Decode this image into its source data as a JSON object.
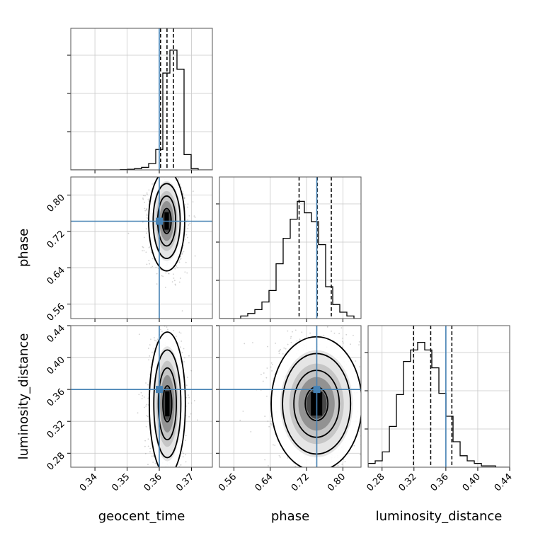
{
  "chart_data": {
    "type": "corner",
    "parameters": [
      "geocent_time",
      "phase",
      "luminosity_distance"
    ],
    "axis_labels": {
      "geocent_time": "geocent_time",
      "phase": "phase",
      "luminosity_distance": "luminosity_distance"
    },
    "ranges": {
      "geocent_time": [
        0.3325,
        0.3765
      ],
      "phase": [
        0.528,
        0.84
      ],
      "luminosity_distance": [
        0.2625,
        0.44
      ]
    },
    "ticks": {
      "geocent_time": [
        0.34,
        0.35,
        0.36,
        0.37
      ],
      "phase": [
        0.56,
        0.64,
        0.72,
        0.8
      ],
      "luminosity_distance": [
        0.28,
        0.32,
        0.36,
        0.4,
        0.44
      ]
    },
    "tick_labels": {
      "geocent_time": [
        "0.34",
        "0.35",
        "0.36",
        "0.37"
      ],
      "phase": [
        "0.56",
        "0.64",
        "0.72",
        "0.80"
      ],
      "luminosity_distance": [
        "0.28",
        "0.32",
        "0.36",
        "0.40",
        "0.44"
      ]
    },
    "truths": {
      "geocent_time": 0.36,
      "phase": 0.7425,
      "luminosity_distance": 0.36
    },
    "quantiles": {
      "geocent_time": [
        0.3604,
        0.3624,
        0.3644
      ],
      "phase": [
        0.7035,
        0.7435,
        0.7745
      ],
      "luminosity_distance": [
        0.3195,
        0.341,
        0.3675
      ]
    },
    "histograms": {
      "geocent_time": {
        "edges_range": [
          0.3325,
          0.3765
        ],
        "counts": [
          0,
          0,
          0,
          0,
          0,
          0,
          0,
          0.002,
          0.005,
          0.01,
          0.02,
          0.05,
          0.16,
          0.76,
          0.94,
          0.79,
          0.12,
          0.01,
          0,
          0
        ]
      },
      "phase": {
        "edges_range": [
          0.528,
          0.84
        ],
        "counts": [
          0,
          0,
          0,
          0.02,
          0.04,
          0.07,
          0.13,
          0.22,
          0.43,
          0.63,
          0.78,
          0.92,
          0.83,
          0.76,
          0.58,
          0.25,
          0.11,
          0.05,
          0.02,
          0
        ]
      },
      "luminosity_distance": {
        "edges_range": [
          0.2625,
          0.44
        ],
        "counts": [
          0.03,
          0.05,
          0.12,
          0.32,
          0.57,
          0.83,
          0.92,
          0.98,
          0.92,
          0.78,
          0.58,
          0.4,
          0.2,
          0.09,
          0.05,
          0.03,
          0.01,
          0.01,
          0,
          0
        ]
      }
    },
    "contours_2d": [
      {
        "x": "geocent_time",
        "y": "phase",
        "center": [
          0.3623,
          0.743
        ],
        "sigma_levels": [
          0.5,
          1.0,
          1.5,
          2.0
        ],
        "spread": [
          0.0028,
          0.055
        ]
      },
      {
        "x": "geocent_time",
        "y": "luminosity_distance",
        "center": [
          0.3625,
          0.342
        ],
        "sigma_levels": [
          0.5,
          1.0,
          1.5,
          2.0
        ],
        "spread": [
          0.0028,
          0.045
        ]
      },
      {
        "x": "phase",
        "y": "luminosity_distance",
        "center": [
          0.742,
          0.342
        ],
        "sigma_levels": [
          0.5,
          1.0,
          1.5,
          2.0
        ],
        "spread": [
          0.05,
          0.042
        ]
      }
    ],
    "truth_line_color": "#4682b4",
    "quantile_line_style": "dashed",
    "grid": true
  }
}
